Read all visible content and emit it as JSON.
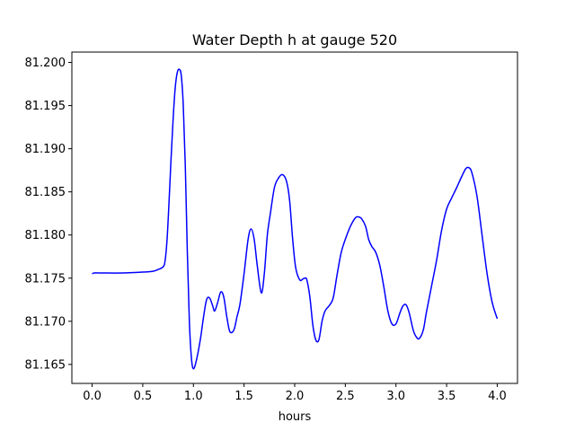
{
  "chart_data": {
    "type": "line",
    "title": "Water Depth h at gauge 520",
    "xlabel": "hours",
    "ylabel": "",
    "xlim": [
      -0.2,
      4.2
    ],
    "ylim": [
      81.1628,
      81.2012
    ],
    "grid": false,
    "xticks": [
      0.0,
      0.5,
      1.0,
      1.5,
      2.0,
      2.5,
      3.0,
      3.5,
      4.0
    ],
    "xtick_labels": [
      "0.0",
      "0.5",
      "1.0",
      "1.5",
      "2.0",
      "2.5",
      "3.0",
      "3.5",
      "4.0"
    ],
    "yticks": [
      81.165,
      81.17,
      81.175,
      81.18,
      81.185,
      81.19,
      81.195,
      81.2
    ],
    "ytick_labels": [
      "81.165",
      "81.170",
      "81.175",
      "81.180",
      "81.185",
      "81.190",
      "81.195",
      "81.200"
    ],
    "series": [
      {
        "color": "#0000ff",
        "x": [
          0.0,
          0.02,
          0.1,
          0.3,
          0.5,
          0.6,
          0.65,
          0.7,
          0.72,
          0.74,
          0.76,
          0.78,
          0.8,
          0.82,
          0.84,
          0.86,
          0.88,
          0.9,
          0.92,
          0.94,
          0.96,
          0.98,
          1.0,
          1.03,
          1.07,
          1.1,
          1.13,
          1.16,
          1.19,
          1.21,
          1.24,
          1.27,
          1.3,
          1.33,
          1.36,
          1.4,
          1.43,
          1.46,
          1.5,
          1.54,
          1.57,
          1.6,
          1.63,
          1.67,
          1.7,
          1.73,
          1.76,
          1.8,
          1.84,
          1.88,
          1.92,
          1.95,
          1.98,
          2.01,
          2.05,
          2.08,
          2.1,
          2.12,
          2.15,
          2.18,
          2.21,
          2.24,
          2.27,
          2.3,
          2.34,
          2.38,
          2.42,
          2.46,
          2.5,
          2.55,
          2.6,
          2.63,
          2.66,
          2.7,
          2.73,
          2.76,
          2.8,
          2.84,
          2.88,
          2.92,
          2.96,
          3.0,
          3.04,
          3.07,
          3.1,
          3.13,
          3.17,
          3.2,
          3.23,
          3.27,
          3.3,
          3.35,
          3.4,
          3.45,
          3.5,
          3.55,
          3.6,
          3.65,
          3.69,
          3.72,
          3.75,
          3.8,
          3.85,
          3.9,
          3.95,
          4.0
        ],
        "y": [
          81.1755,
          81.1756,
          81.1756,
          81.1756,
          81.1757,
          81.1758,
          81.176,
          81.1763,
          81.177,
          81.1795,
          81.184,
          81.189,
          81.1935,
          81.197,
          81.1988,
          81.1992,
          81.1985,
          81.195,
          81.188,
          81.178,
          81.17,
          81.1658,
          81.1645,
          81.1655,
          81.168,
          81.1705,
          81.1725,
          81.1727,
          81.1718,
          81.1712,
          81.1722,
          81.1734,
          81.1728,
          81.1705,
          81.1688,
          81.169,
          81.1705,
          81.172,
          81.1755,
          81.1795,
          81.1807,
          81.1795,
          81.1765,
          81.1733,
          81.1755,
          81.18,
          81.1825,
          81.1855,
          81.1866,
          81.187,
          81.1862,
          81.184,
          81.1795,
          81.1762,
          81.1748,
          81.1749,
          81.175,
          81.1748,
          81.1728,
          81.1695,
          81.1678,
          81.1679,
          81.17,
          81.1712,
          81.1718,
          81.1727,
          81.1755,
          81.178,
          81.1795,
          81.181,
          81.182,
          81.1821,
          81.1819,
          81.181,
          81.1795,
          81.1787,
          81.178,
          81.1765,
          81.174,
          81.1712,
          81.1697,
          81.1697,
          81.171,
          81.1718,
          81.1719,
          81.171,
          81.169,
          81.1682,
          81.168,
          81.169,
          81.171,
          81.174,
          81.177,
          81.1805,
          81.183,
          81.1843,
          81.1855,
          81.1868,
          81.1877,
          81.1878,
          81.1872,
          81.1845,
          81.18,
          81.1755,
          81.1722,
          81.1703
        ]
      }
    ]
  }
}
